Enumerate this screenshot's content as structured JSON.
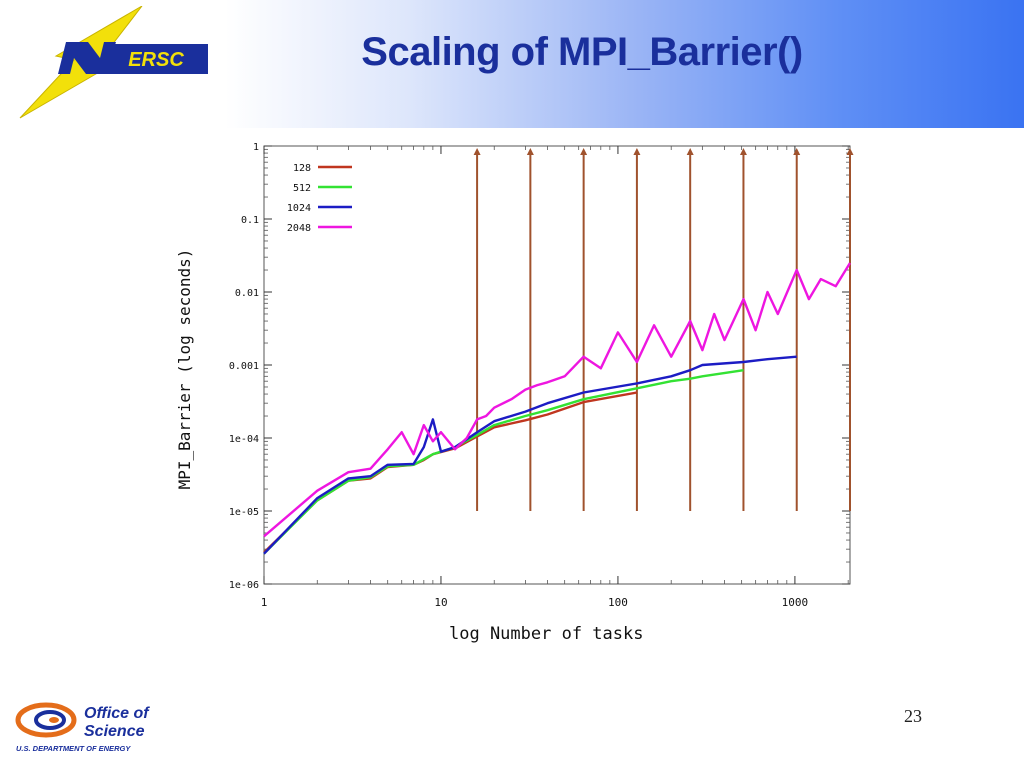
{
  "slide": {
    "title": "Scaling of MPI_Barrier()",
    "page_number": "23",
    "logo_top": "ERSC",
    "logo_bottom_line1": "Office of",
    "logo_bottom_line2": "Science",
    "logo_bottom_line3": "U.S. DEPARTMENT OF ENERGY"
  },
  "chart_data": {
    "type": "line",
    "xlabel": "log Number of tasks",
    "ylabel": "MPI_Barrier (log seconds)",
    "xscale": "log",
    "yscale": "log",
    "xlim": [
      1,
      2048
    ],
    "ylim": [
      1e-06,
      1
    ],
    "x_tick_labels": [
      "1",
      "10",
      "100",
      "1000"
    ],
    "y_tick_labels": [
      "1e-06",
      "1e-05",
      "1e-04",
      "0.001",
      "0.01",
      "0.1",
      "1"
    ],
    "legend_position": "top-left",
    "series": [
      {
        "name": "128",
        "color": "#c0361f",
        "x": [
          1,
          2,
          3,
          4,
          5,
          7,
          8,
          9,
          12,
          16,
          20,
          30,
          40,
          64,
          128
        ],
        "y": [
          2.7e-06,
          1.4e-05,
          2.6e-05,
          2.8e-05,
          4e-05,
          4.3e-05,
          5e-05,
          6e-05,
          7.2e-05,
          0.000105,
          0.00014,
          0.000175,
          0.00021,
          0.00031,
          0.00042
        ]
      },
      {
        "name": "512",
        "color": "#33e233",
        "x": [
          1,
          2,
          3,
          4,
          5,
          7,
          9,
          12,
          16,
          20,
          30,
          40,
          64,
          128,
          200,
          256,
          300,
          512
        ],
        "y": [
          2.6e-06,
          1.4e-05,
          2.6e-05,
          2.9e-05,
          4.1e-05,
          4.3e-05,
          6e-05,
          7.5e-05,
          0.00011,
          0.00015,
          0.0002,
          0.00024,
          0.00034,
          0.00048,
          0.0006,
          0.00065,
          0.0007,
          0.00085
        ]
      },
      {
        "name": "1024",
        "color": "#1c1cc4",
        "x": [
          1,
          2,
          3,
          4,
          5,
          7,
          8,
          9,
          10,
          12,
          16,
          20,
          30,
          40,
          64,
          128,
          200,
          256,
          300,
          512,
          700,
          1024
        ],
        "y": [
          2.6e-06,
          1.5e-05,
          2.8e-05,
          3e-05,
          4.3e-05,
          4.4e-05,
          7.5e-05,
          0.00018,
          6.5e-05,
          7.5e-05,
          0.00012,
          0.00017,
          0.00023,
          0.0003,
          0.00042,
          0.00056,
          0.0007,
          0.00085,
          0.001,
          0.0011,
          0.0012,
          0.0013
        ]
      },
      {
        "name": "2048",
        "color": "#ee16e0",
        "x": [
          1,
          2,
          3,
          4,
          5,
          6,
          7,
          8,
          9,
          10,
          12,
          14,
          16,
          18,
          20,
          25,
          30,
          35,
          40,
          50,
          64,
          80,
          100,
          128,
          160,
          200,
          256,
          300,
          350,
          400,
          512,
          600,
          700,
          800,
          1024,
          1200,
          1400,
          1700,
          2048
        ],
        "y": [
          4.5e-06,
          1.9e-05,
          3.4e-05,
          3.8e-05,
          7e-05,
          0.00012,
          6e-05,
          0.00015,
          9e-05,
          0.00012,
          7e-05,
          0.0001,
          0.00018,
          0.0002,
          0.00026,
          0.00034,
          0.00046,
          0.00053,
          0.00058,
          0.0007,
          0.0013,
          0.0009,
          0.0028,
          0.0011,
          0.0035,
          0.0013,
          0.004,
          0.0016,
          0.005,
          0.0022,
          0.008,
          0.003,
          0.01,
          0.005,
          0.02,
          0.008,
          0.015,
          0.012,
          0.025
        ]
      }
    ],
    "markers": {
      "color": "#a0522d",
      "x": [
        16,
        32,
        64,
        128,
        256,
        512,
        1024,
        2048
      ]
    }
  }
}
